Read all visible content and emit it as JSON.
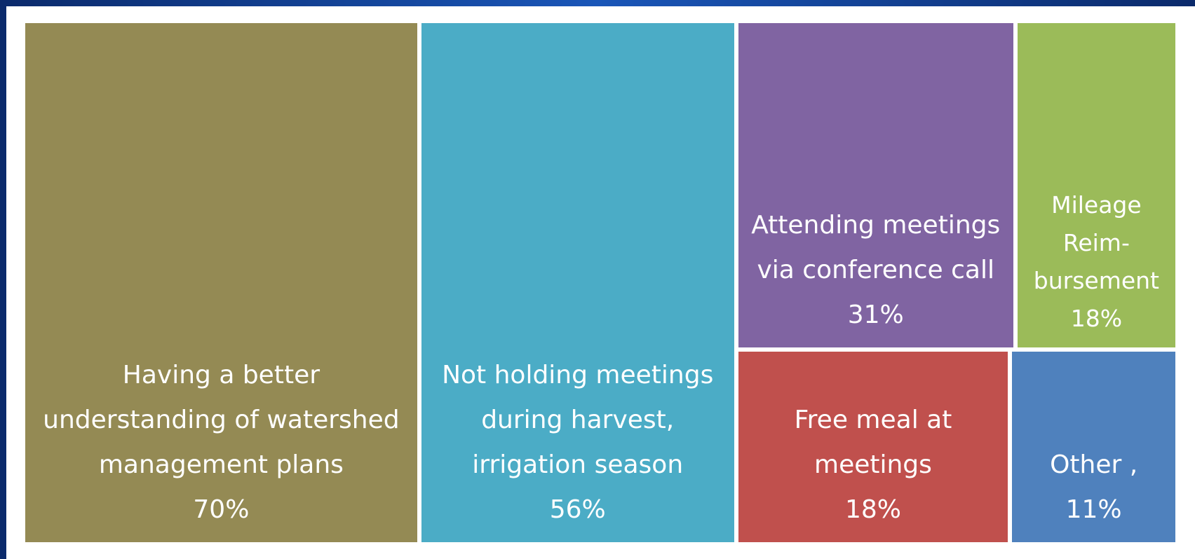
{
  "chart_data": {
    "type": "treemap",
    "categories": [
      "Having a better understanding of watershed management plans",
      "Not holding meetings during harvest, irrigation season",
      "Attending meetings via conference call",
      "Mileage Reim-bursement",
      "Free meal at meetings",
      "Other ,"
    ],
    "values": [
      70,
      56,
      31,
      18,
      18,
      11
    ],
    "value_labels": [
      "70%",
      "56%",
      "31%",
      "18%",
      "18%",
      "11%"
    ],
    "colors": [
      "#948a54",
      "#4bacc6",
      "#8064a2",
      "#9bbb59",
      "#c0504d",
      "#4f81bd"
    ]
  }
}
